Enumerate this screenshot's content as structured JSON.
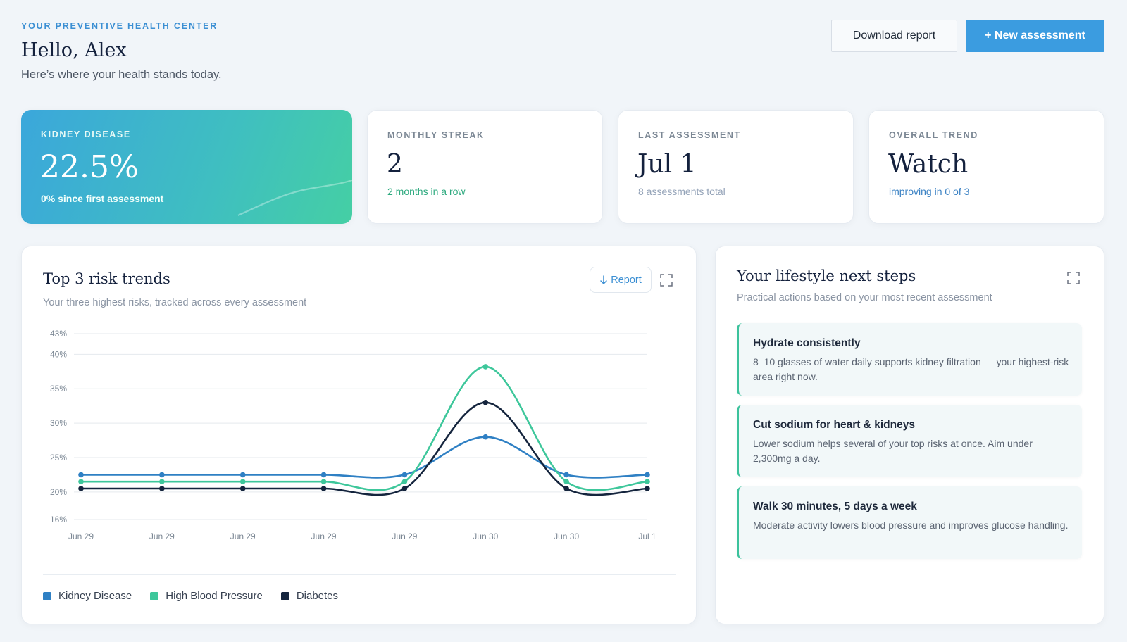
{
  "header": {
    "eyebrow": "YOUR PREVENTIVE HEALTH CENTER",
    "greeting": "Hello, Alex",
    "subtitle": "Here’s where your health stands today.",
    "download_label": "Download report",
    "new_label": "+ New assessment"
  },
  "stats": [
    {
      "label": "KIDNEY DISEASE",
      "value": "22.5%",
      "sub": "0% since first assessment",
      "sub_color": "#f2fffb"
    },
    {
      "label": "MONTHLY STREAK",
      "value": "2",
      "sub": "2 months in a row",
      "sub_color": "#2eaa7f"
    },
    {
      "label": "LAST ASSESSMENT",
      "value": "Jul 1",
      "sub": "8 assessments total",
      "sub_color": "#94a3b8"
    },
    {
      "label": "OVERALL TREND",
      "value": "Watch",
      "sub": "improving in 0 of 3",
      "sub_color": "#3b82c4"
    }
  ],
  "risk_panel": {
    "title": "Top 3 risk trends",
    "subtitle": "Your three highest risks, tracked across every assessment",
    "report_label": "Report",
    "report_icon": "arrow-down-icon",
    "expand_icon": "expand-icon"
  },
  "chart_data": {
    "type": "line",
    "x": [
      "Jun 29",
      "Jun 29",
      "Jun 29",
      "Jun 29",
      "Jun 29",
      "Jun 30",
      "Jun 30",
      "Jul 1"
    ],
    "ylim": [
      16,
      43
    ],
    "yticks": [
      16,
      20,
      25,
      30,
      35,
      40,
      43
    ],
    "ytick_labels": [
      "16%",
      "20%",
      "25%",
      "30%",
      "35%",
      "40%",
      "43%"
    ],
    "grid": true,
    "legend": "bottom",
    "series": [
      {
        "name": "Kidney Disease",
        "color": "#2f80c4",
        "values": [
          22.5,
          22.5,
          22.5,
          22.5,
          22.5,
          28.0,
          22.5,
          22.5
        ]
      },
      {
        "name": "High Blood Pressure",
        "color": "#3ec79b",
        "values": [
          21.5,
          21.5,
          21.5,
          21.5,
          21.5,
          38.2,
          21.5,
          21.5
        ]
      },
      {
        "name": "Diabetes",
        "color": "#14243d",
        "values": [
          20.5,
          20.5,
          20.5,
          20.5,
          20.5,
          33.0,
          20.5,
          20.5
        ]
      }
    ]
  },
  "lifestyle": {
    "title": "Your lifestyle next steps",
    "subtitle": "Practical actions based on your most recent assessment",
    "steps": [
      {
        "title": "Hydrate consistently",
        "body": "8–10 glasses of water daily supports kidney filtration — your highest-risk area right now."
      },
      {
        "title": "Cut sodium for heart & kidneys",
        "body": "Lower sodium helps several of your top risks at once. Aim under 2,300mg a day."
      },
      {
        "title": "Walk 30 minutes, 5 days a week",
        "body": "Moderate activity lowers blood pressure and improves glucose handling."
      }
    ]
  }
}
